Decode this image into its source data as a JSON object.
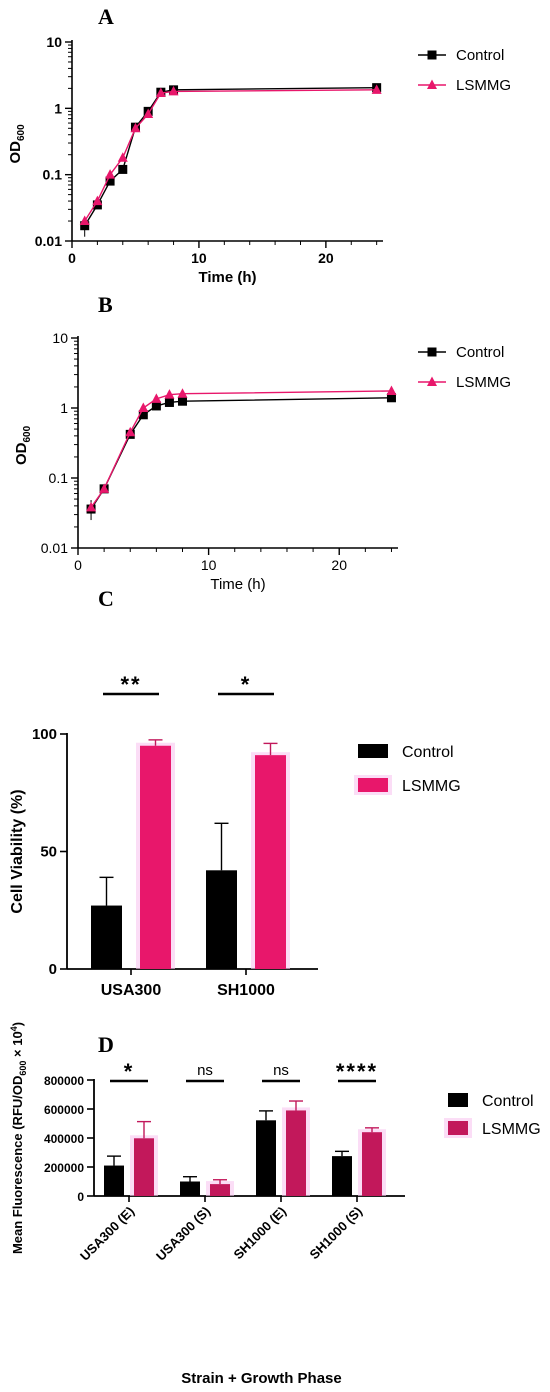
{
  "chart_data": [
    {
      "panel": "A",
      "type": "line",
      "xlabel": "Time (h)",
      "ylabel": "OD",
      "ylabel_sub": "600",
      "ylog": true,
      "xlim": [
        0,
        24.5
      ],
      "ylim": [
        0.01,
        10
      ],
      "xticks": [
        "0",
        "10",
        "20"
      ],
      "yticks": [
        "0.01",
        "0.1",
        "1",
        "10"
      ],
      "legend": "top-right",
      "series": [
        {
          "name": "Control",
          "color": "#000000",
          "marker": "square",
          "x": [
            1,
            2,
            3,
            4,
            5,
            6,
            7,
            8,
            24
          ],
          "y": [
            0.017,
            0.035,
            0.08,
            0.12,
            0.52,
            0.9,
            1.75,
            1.9,
            2.05
          ]
        },
        {
          "name": "LSMMG",
          "color": "#e8176b",
          "marker": "triangle",
          "x": [
            1,
            2,
            3,
            4,
            5,
            6,
            7,
            8,
            24
          ],
          "y": [
            0.02,
            0.04,
            0.1,
            0.18,
            0.5,
            0.82,
            1.7,
            1.8,
            1.9
          ]
        }
      ]
    },
    {
      "panel": "B",
      "type": "line",
      "xlabel": "Time (h)",
      "ylabel": "OD",
      "ylabel_sub": "600",
      "ylog": true,
      "xlim": [
        0,
        24.5
      ],
      "ylim": [
        0.01,
        10
      ],
      "xticks": [
        "0",
        "10",
        "20"
      ],
      "yticks": [
        "0.01",
        "0.1",
        "1",
        "10"
      ],
      "legend": "top-right",
      "series": [
        {
          "name": "Control",
          "color": "#000000",
          "marker": "square",
          "x": [
            1,
            2,
            4,
            5,
            6,
            7,
            8,
            24
          ],
          "y": [
            0.036,
            0.07,
            0.42,
            0.8,
            1.07,
            1.2,
            1.25,
            1.4
          ]
        },
        {
          "name": "LSMMG",
          "color": "#e8176b",
          "marker": "triangle",
          "x": [
            1,
            2,
            4,
            5,
            6,
            7,
            8,
            24
          ],
          "y": [
            0.038,
            0.07,
            0.45,
            1.0,
            1.35,
            1.55,
            1.6,
            1.75
          ]
        }
      ]
    },
    {
      "panel": "C",
      "type": "bar",
      "ylabel": "Cell Viability (%)",
      "ylim": [
        0,
        100
      ],
      "yticks": [
        "0",
        "50",
        "100"
      ],
      "categories": [
        "USA300",
        "SH1000"
      ],
      "legend": "top-right",
      "series": [
        {
          "name": "Control",
          "color": "#000000",
          "values": [
            27,
            42
          ],
          "errors": [
            12,
            20
          ]
        },
        {
          "name": "LSMMG",
          "color": "#e8176b",
          "values": [
            95,
            91
          ],
          "errors": [
            2.5,
            5
          ]
        }
      ],
      "significance": [
        "**",
        "*"
      ]
    },
    {
      "panel": "D",
      "type": "bar",
      "xlabel": "Strain + Growth Phase",
      "ylabel": "Mean Fluorescence (RFU/OD",
      "ylabel_sub": "600",
      "ylabel_tail": " × 10",
      "ylabel_sup": "4",
      "ylabel_close": ")",
      "ylim": [
        0,
        800000
      ],
      "yticks": [
        "0",
        "200000",
        "400000",
        "600000",
        "800000"
      ],
      "categories": [
        "USA300 (E)",
        "USA300 (S)",
        "SH1000 (E)",
        "SH1000 (S)"
      ],
      "legend": "top-right",
      "series": [
        {
          "name": "Control",
          "color": "#000000",
          "values": [
            210000,
            100000,
            522000,
            275000
          ],
          "errors": [
            65000,
            33000,
            65000,
            33000
          ]
        },
        {
          "name": "LSMMG",
          "color": "#c2185b",
          "values": [
            398000,
            82000,
            590000,
            440000
          ],
          "errors": [
            115000,
            30000,
            65000,
            30000
          ]
        }
      ],
      "significance": [
        "*",
        "ns",
        "ns",
        "****"
      ]
    }
  ]
}
